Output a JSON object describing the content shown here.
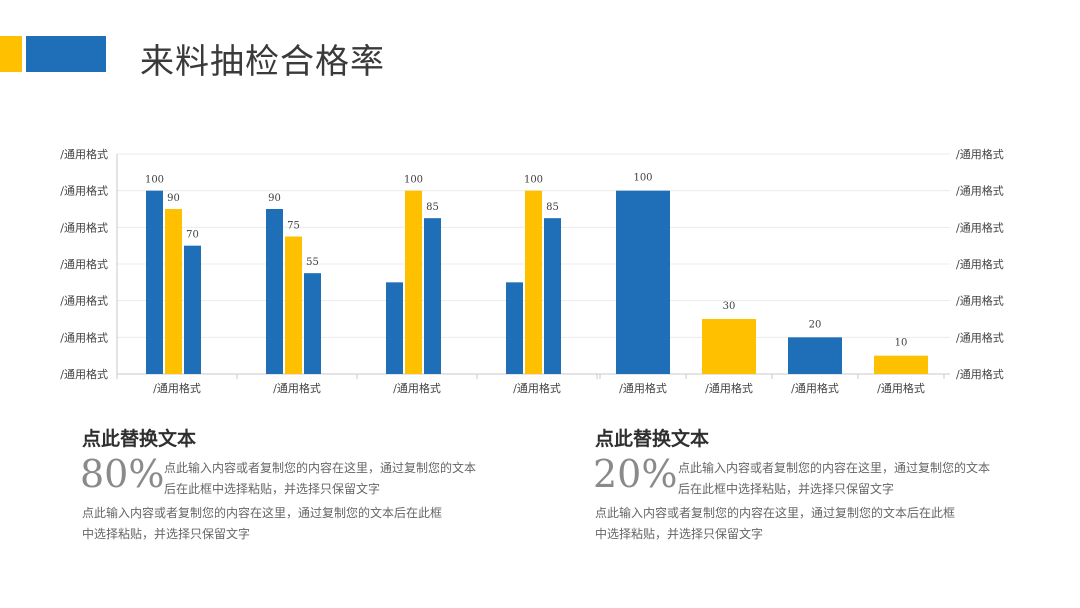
{
  "header": {
    "title": "来料抽检合格率",
    "accent_colors": [
      "#FFC000",
      "#1F6FB8"
    ]
  },
  "colors": {
    "blue": "#1F6FB8",
    "yellow": "#FFC000"
  },
  "chart_data": [
    {
      "type": "bar",
      "categories": [
        "/通用格式",
        "/通用格式",
        "/通用格式",
        "/通用格式"
      ],
      "series": [
        {
          "color": "#1F6FB8",
          "values": [
            100,
            90,
            50,
            50
          ],
          "labels": [
            "100",
            "90",
            "",
            ""
          ]
        },
        {
          "color": "#FFC000",
          "values": [
            90,
            75,
            100,
            100
          ],
          "labels": [
            "90",
            "75",
            "100",
            "100"
          ]
        },
        {
          "color": "#1F6FB8",
          "values": [
            70,
            55,
            85,
            85
          ],
          "labels": [
            "70",
            "55",
            "85",
            "85"
          ]
        }
      ],
      "ylim": [
        0,
        120
      ],
      "y_tick_labels": [
        "/通用格式",
        "/通用格式",
        "/通用格式",
        "/通用格式",
        "/通用格式",
        "/通用格式",
        "/通用格式"
      ],
      "grid": true
    },
    {
      "type": "bar",
      "categories": [
        "/通用格式",
        "/通用格式",
        "/通用格式",
        "/通用格式"
      ],
      "values": [
        100,
        30,
        20,
        10
      ],
      "labels": [
        "100",
        "30",
        "20",
        "10"
      ],
      "colors": [
        "#1F6FB8",
        "#FFC000",
        "#1F6FB8",
        "#FFC000"
      ],
      "ylim": [
        0,
        120
      ],
      "y_tick_labels": [
        "/通用格式",
        "/通用格式",
        "/通用格式",
        "/通用格式",
        "/通用格式",
        "/通用格式",
        "/通用格式"
      ],
      "grid": true
    }
  ],
  "blocks": [
    {
      "heading": "点此替换文本",
      "percent": "80%",
      "side_lines": [
        "点此输入内容或者复制您的内容在这里，通过复制您的文本",
        "后在此框中选择粘贴，并选择只保留文字"
      ],
      "bottom_lines": [
        "点此输入内容或者复制您的内容在这里，通过复制您的文本后在此框",
        "中选择粘贴，并选择只保留文字"
      ]
    },
    {
      "heading": "点此替换文本",
      "percent": "20%",
      "side_lines": [
        "点此输入内容或者复制您的内容在这里，通过复制您的文本",
        "后在此框中选择粘贴，并选择只保留文字"
      ],
      "bottom_lines": [
        "点此输入内容或者复制您的内容在这里，通过复制您的文本后在此框",
        "中选择粘贴，并选择只保留文字"
      ]
    }
  ]
}
